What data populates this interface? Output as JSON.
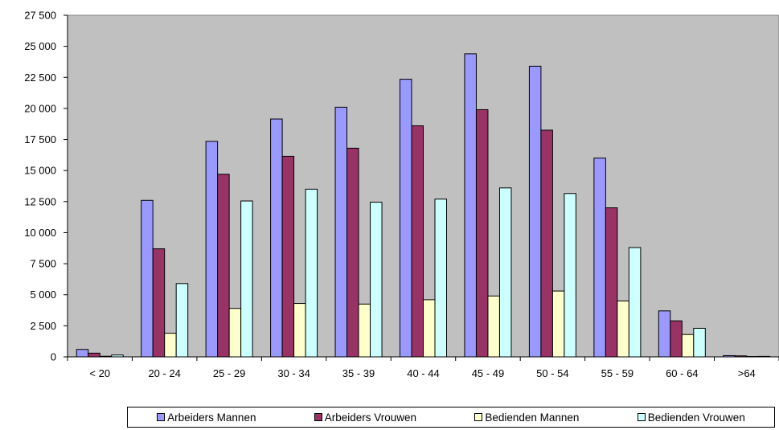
{
  "chart_data": {
    "type": "bar",
    "title": "",
    "xlabel": "",
    "ylabel": "",
    "ylim": [
      0,
      27500
    ],
    "yticks": [
      0,
      2500,
      5000,
      7500,
      10000,
      12500,
      15000,
      17500,
      20000,
      22500,
      25000,
      27500
    ],
    "ytick_labels": [
      "0",
      "2 500",
      "5 000",
      "7 500",
      "10 000",
      "12 500",
      "15 000",
      "17 500",
      "20 000",
      "22 500",
      "25 000",
      "27 500"
    ],
    "categories": [
      "< 20",
      "20 - 24",
      "25 - 29",
      "30 - 34",
      "35 - 39",
      "40 - 44",
      "45 - 49",
      "50 - 54",
      "55 - 59",
      "60 - 64",
      ">64"
    ],
    "grid": false,
    "plot_background": "#c0c0c0",
    "legend_position": "bottom",
    "series": [
      {
        "name": "Arbeiders Mannen",
        "color": "#9999ff",
        "values": [
          600,
          12600,
          17350,
          19150,
          20100,
          22350,
          24400,
          23400,
          16000,
          3700,
          100
        ]
      },
      {
        "name": "Arbeiders Vrouwen",
        "color": "#993366",
        "values": [
          300,
          8700,
          14700,
          16150,
          16800,
          18600,
          19900,
          18250,
          12000,
          2900,
          80
        ]
      },
      {
        "name": "Bedienden Mannen",
        "color": "#ffffcc",
        "values": [
          50,
          1900,
          3900,
          4300,
          4250,
          4600,
          4900,
          5300,
          4500,
          1800,
          30
        ]
      },
      {
        "name": "Bedienden Vrouwen",
        "color": "#ccffff",
        "values": [
          150,
          5900,
          12550,
          13500,
          12450,
          12700,
          13600,
          13150,
          8800,
          2300,
          40
        ]
      }
    ]
  }
}
